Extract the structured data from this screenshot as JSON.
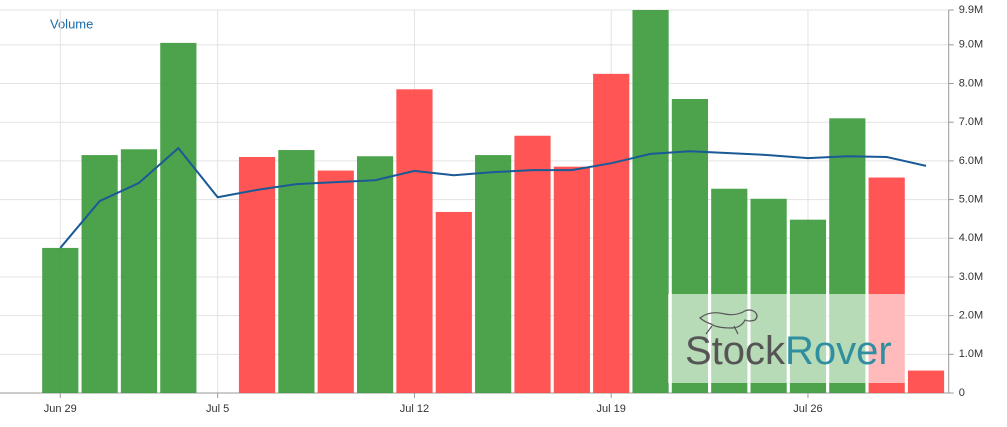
{
  "chart_data": {
    "type": "bar",
    "title": "Volume",
    "categories": [
      "Jun 29",
      null,
      null,
      null,
      "Jul 5",
      null,
      null,
      null,
      null,
      "Jul 12",
      null,
      null,
      null,
      null,
      "Jul 19",
      null,
      null,
      null,
      null,
      "Jul 26",
      null,
      null,
      null
    ],
    "series": [
      {
        "type": "bar",
        "values": [
          3750000,
          6150000,
          6300000,
          9050000,
          null,
          6100000,
          6280000,
          5750000,
          6120000,
          7850000,
          4680000,
          6150000,
          6650000,
          5850000,
          8250000,
          9900000,
          7600000,
          5280000,
          5020000,
          4480000,
          7100000,
          5570000,
          580000
        ],
        "colors": [
          "#3d9b3d",
          "#3d9b3d",
          "#3d9b3d",
          "#3d9b3d",
          null,
          "#ff4747",
          "#3d9b3d",
          "#ff4747",
          "#3d9b3d",
          "#ff4747",
          "#ff4747",
          "#3d9b3d",
          "#ff4747",
          "#ff4747",
          "#ff4747",
          "#3d9b3d",
          "#3d9b3d",
          "#3d9b3d",
          "#3d9b3d",
          "#3d9b3d",
          "#3d9b3d",
          "#ff4747",
          "#ff4747"
        ]
      },
      {
        "type": "line",
        "color": "#1a5a96",
        "values": [
          3750000,
          4960000,
          5430000,
          6330000,
          5060000,
          5250000,
          5400000,
          5450000,
          5500000,
          5740000,
          5630000,
          5710000,
          5760000,
          5760000,
          5940000,
          6180000,
          6250000,
          6200000,
          6150000,
          6070000,
          6120000,
          6100000,
          5870000
        ]
      }
    ],
    "ylim": [
      0,
      9900000
    ],
    "yticks": [
      0,
      {
        "value": 1000000,
        "label": "1.0M"
      },
      {
        "value": 2000000,
        "label": "2.0M"
      },
      {
        "value": 3000000,
        "label": "3.0M"
      },
      {
        "value": 4000000,
        "label": "4.0M"
      },
      {
        "value": 5000000,
        "label": "5.0M"
      },
      {
        "value": 6000000,
        "label": "6.0M"
      },
      {
        "value": 7000000,
        "label": "7.0M"
      },
      {
        "value": 8000000,
        "label": "8.0M"
      },
      {
        "value": 9000000,
        "label": "9.0M"
      },
      {
        "value": 9900000,
        "label": "9.9M"
      }
    ],
    "grid": true,
    "watermark": [
      "Stock",
      "Rover"
    ]
  }
}
